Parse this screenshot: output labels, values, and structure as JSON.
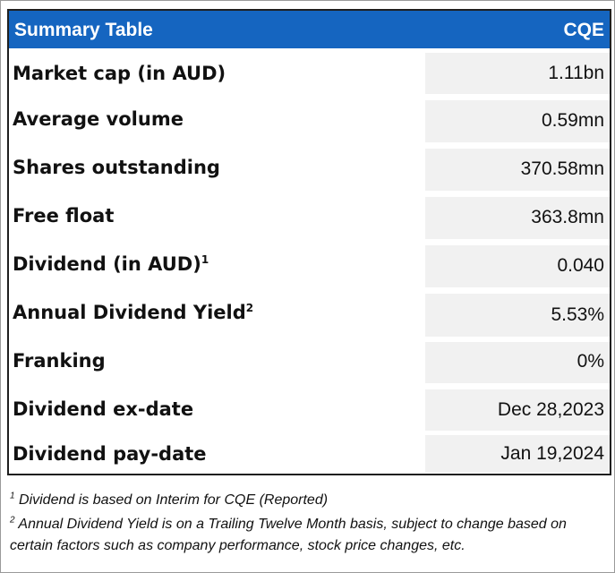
{
  "header": {
    "title": "Summary Table",
    "code": "CQE"
  },
  "rows": [
    {
      "label": "Market cap (in AUD)",
      "sup": "",
      "value": "1.11bn"
    },
    {
      "label": "Average volume",
      "sup": "",
      "value": "0.59mn"
    },
    {
      "label": "Shares outstanding",
      "sup": "",
      "value": "370.58mn"
    },
    {
      "label": "Free float",
      "sup": "",
      "value": "363.8mn"
    },
    {
      "label": "Dividend (in AUD)",
      "sup": "1",
      "value": "0.040"
    },
    {
      "label": "Annual Dividend Yield",
      "sup": "2",
      "value": "5.53%"
    },
    {
      "label": "Franking",
      "sup": "",
      "value": "0%"
    },
    {
      "label": "Dividend ex-date",
      "sup": "",
      "value": "Dec 28,2023"
    },
    {
      "label": "Dividend pay-date",
      "sup": "",
      "value": "Jan 19,2024"
    }
  ],
  "notes": [
    {
      "sup": "1",
      "text": " Dividend is based on Interim for CQE (Reported)"
    },
    {
      "sup": "2",
      "text": " Annual Dividend Yield is on a Trailing Twelve Month basis, subject to change based on certain factors such as company performance, stock price changes, etc."
    }
  ]
}
